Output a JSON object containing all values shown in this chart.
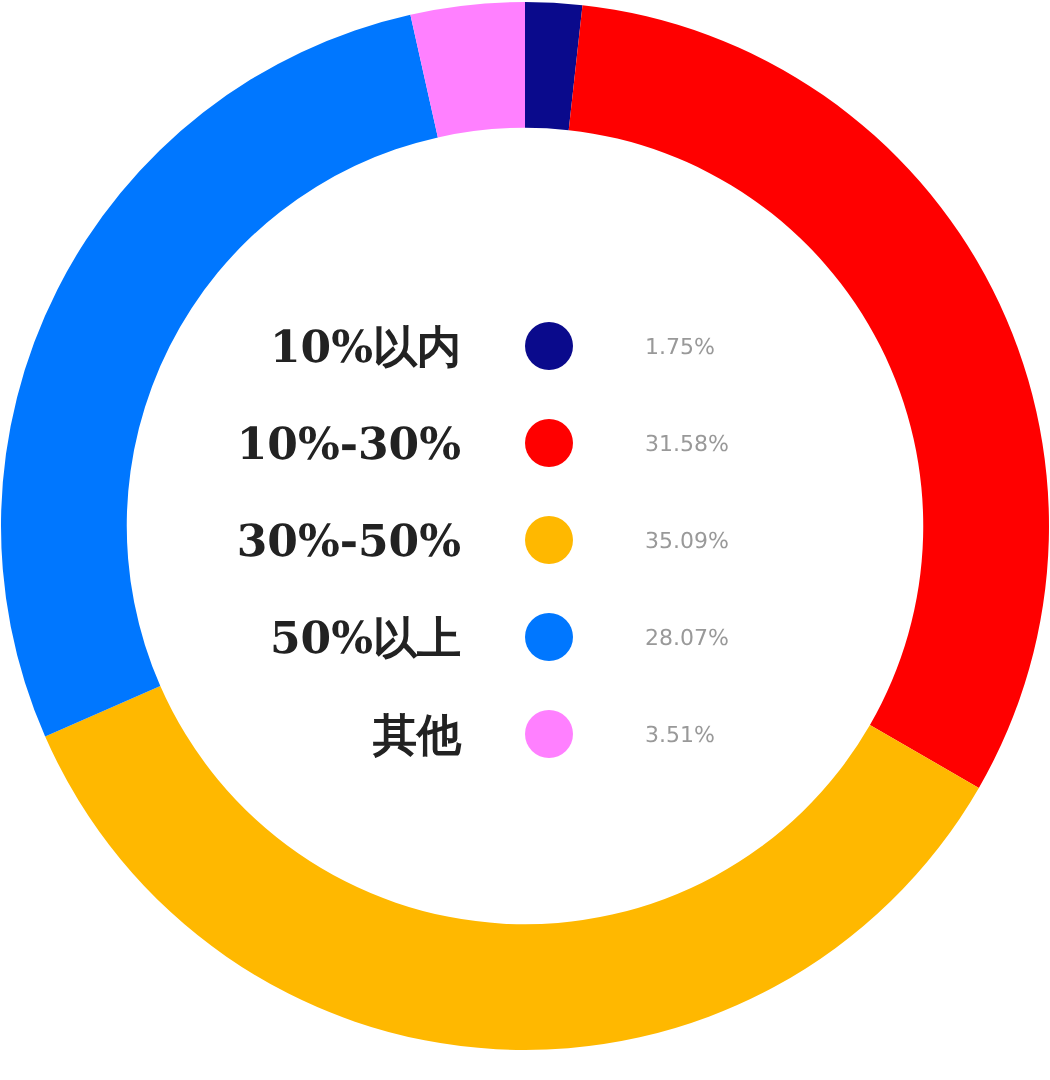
{
  "chart_data": {
    "type": "donut",
    "categories": [
      "10%以内",
      "10%-30%",
      "30%-50%",
      "50%以上",
      "其他"
    ],
    "values": [
      1.75,
      31.58,
      35.09,
      28.07,
      3.51
    ],
    "colors": [
      "#0a0a8c",
      "#ff0000",
      "#ffb800",
      "#0077ff",
      "#ff80ff"
    ],
    "legend": "center",
    "value_labels": [
      "1.75%",
      "31.58%",
      "35.09%",
      "28.07%",
      "3.51%"
    ]
  }
}
